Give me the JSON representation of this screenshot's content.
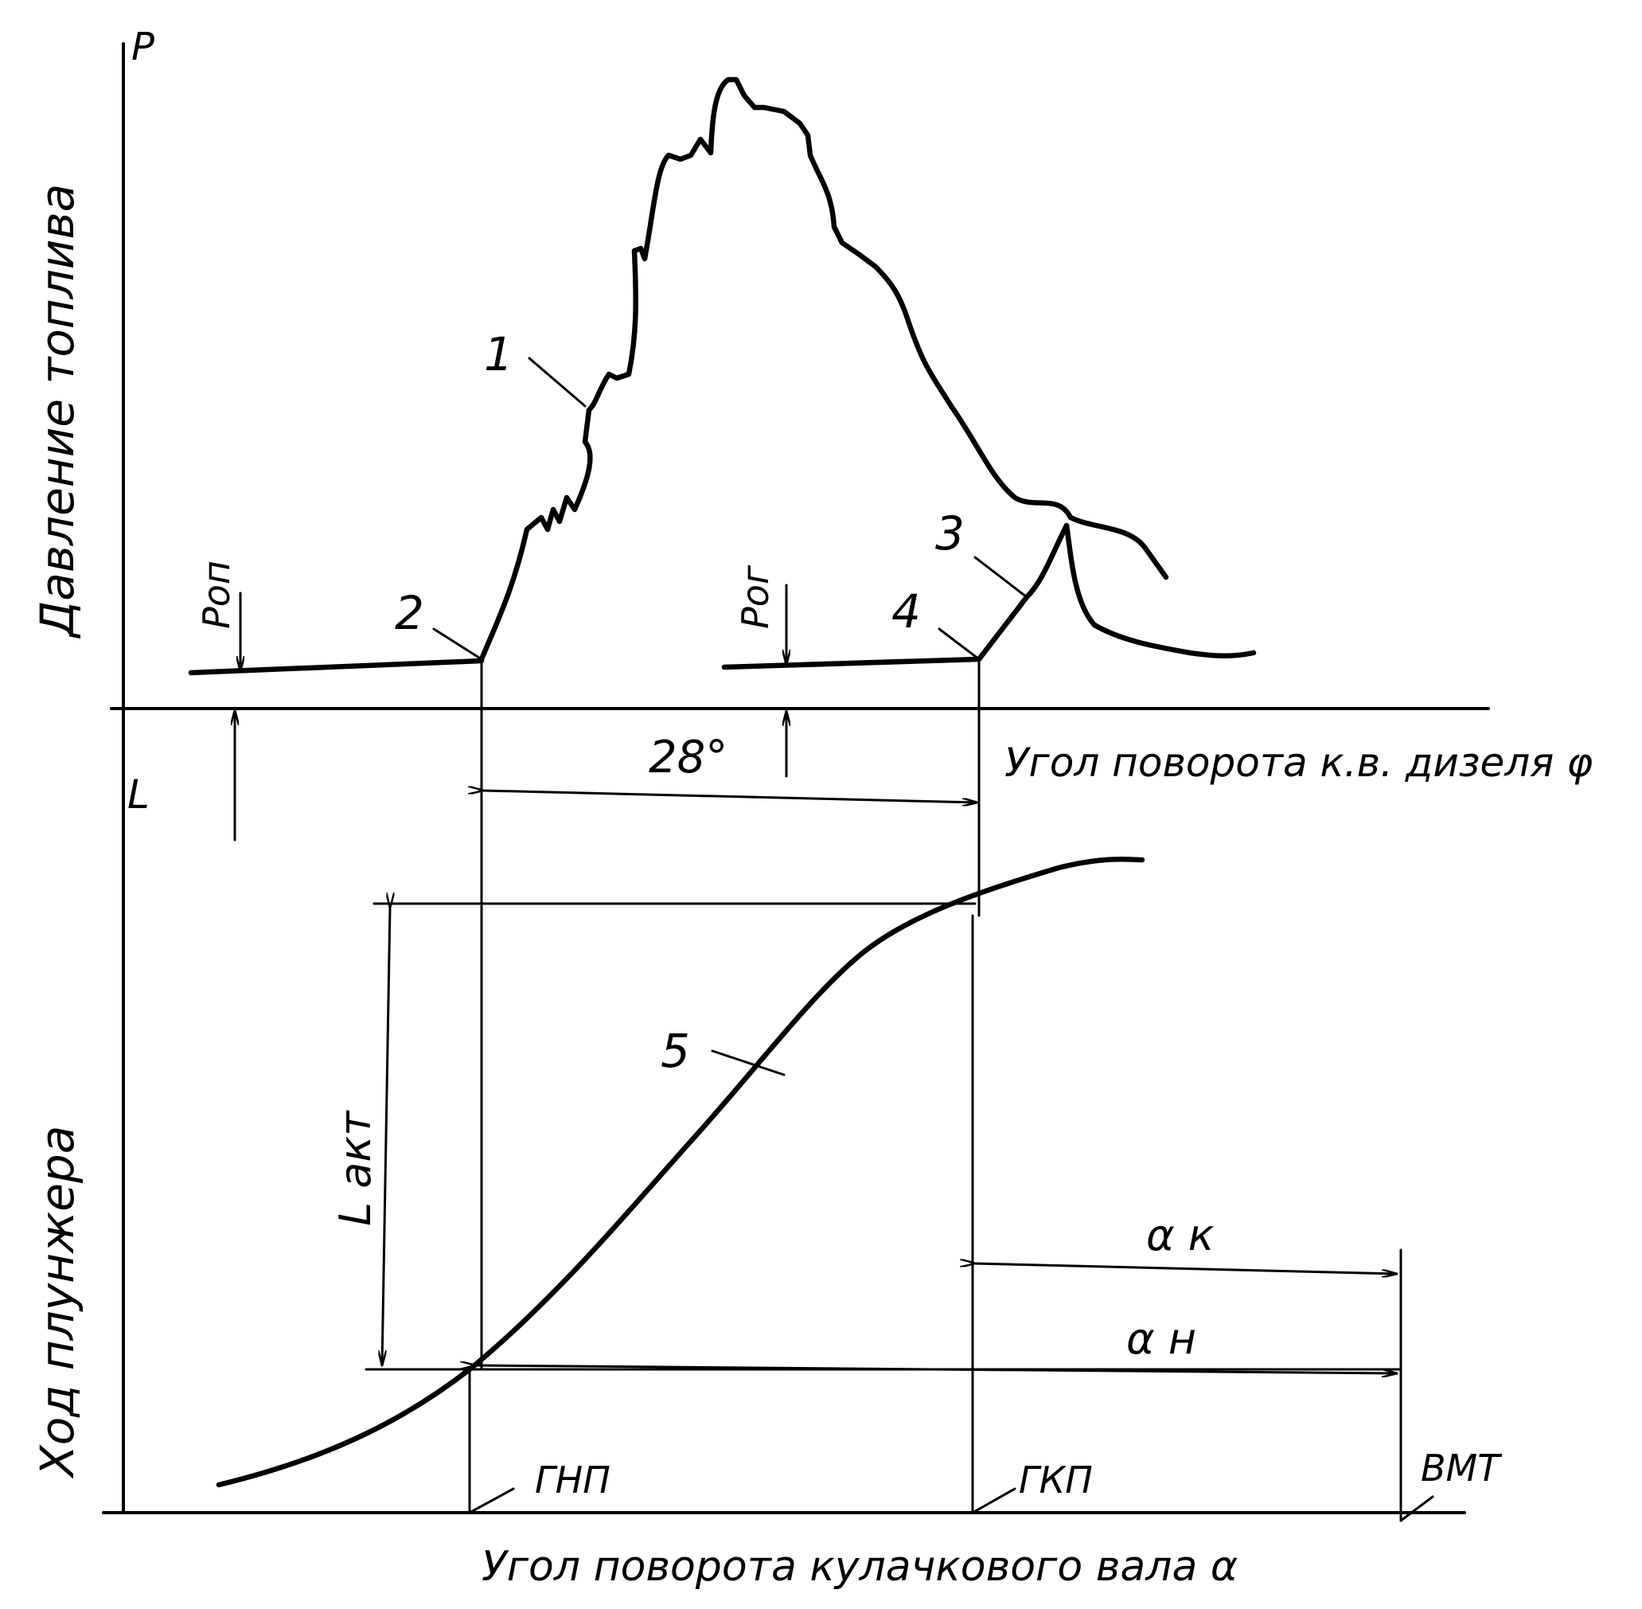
{
  "axes": {
    "top_y_symbol": "P",
    "top_y_title": "Давление топлива",
    "top_x_title": "Угол поворота к.в. дизеля φ",
    "bottom_y_symbol": "L",
    "bottom_y_title": "Ход плунжера",
    "bottom_x_title": "Угол поворота кулачкового вала  α"
  },
  "curve_labels": {
    "c1": "1",
    "c2": "2",
    "c3": "3",
    "c4": "4",
    "c5": "5"
  },
  "annotations": {
    "p_op": "Pоп",
    "p_og": "Pог",
    "angle_28": "28°",
    "l_akt": "L акт",
    "alpha_k": "α к",
    "alpha_n": "α н",
    "gnp": "ГНП",
    "gkp": "ГКП",
    "vmt": "ВМТ"
  }
}
